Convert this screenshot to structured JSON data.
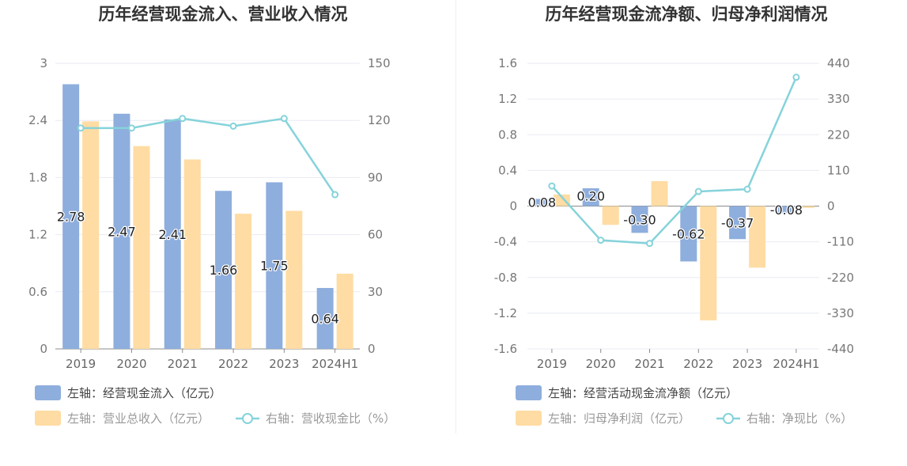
{
  "colors": {
    "bar1": "#8eaedd",
    "bar2": "#ffdca3",
    "line": "#86d3da",
    "grid": "#e8ebf3",
    "zero_axis": "#8c8c8c"
  },
  "chart_data": [
    {
      "type": "bar",
      "title": "历年经营现金流入、营业收入情况",
      "categories": [
        "2019",
        "2020",
        "2021",
        "2022",
        "2023",
        "2024H1"
      ],
      "y_left": {
        "ticks": [
          "0",
          "0.6",
          "1.2",
          "1.8",
          "2.4",
          "3"
        ],
        "ylim": [
          0,
          3
        ]
      },
      "y_right": {
        "ticks": [
          "0",
          "30",
          "60",
          "90",
          "120",
          "150"
        ],
        "ylim": [
          0,
          150
        ]
      },
      "series": [
        {
          "name": "左轴：经营现金流入（亿元）",
          "type": "bar",
          "axis": "left",
          "values": [
            2.78,
            2.47,
            2.41,
            1.66,
            1.75,
            0.64
          ],
          "labels": [
            "2.78",
            "2.47",
            "2.41",
            "1.66",
            "1.75",
            "0.64"
          ]
        },
        {
          "name": "左轴：营业总收入（亿元）",
          "type": "bar",
          "axis": "left",
          "values": [
            2.39,
            2.13,
            1.99,
            1.42,
            1.45,
            0.79
          ]
        },
        {
          "name": "右轴：营收现金比（%）",
          "type": "line",
          "axis": "right",
          "values": [
            116,
            116,
            121,
            117,
            121,
            81
          ]
        }
      ],
      "grid": true,
      "legend_position": "bottom-left"
    },
    {
      "type": "bar",
      "title": "历年经营现金流净额、归母净利润情况",
      "categories": [
        "2019",
        "2020",
        "2021",
        "2022",
        "2023",
        "2024H1"
      ],
      "y_left": {
        "ticks": [
          "-1.6",
          "-1.2",
          "-0.8",
          "-0.4",
          "0",
          "0.4",
          "0.8",
          "1.2",
          "1.6"
        ],
        "ylim": [
          -1.6,
          1.6
        ]
      },
      "y_right": {
        "ticks": [
          "-440",
          "-330",
          "-220",
          "-110",
          "0",
          "110",
          "220",
          "330",
          "440"
        ],
        "ylim": [
          -440,
          440
        ]
      },
      "series": [
        {
          "name": "左轴：经营活动现金流净额（亿元）",
          "type": "bar",
          "axis": "left",
          "values": [
            0.08,
            0.2,
            -0.3,
            -0.62,
            -0.37,
            -0.08
          ],
          "labels": [
            "0.08",
            "0.20",
            "-0.30",
            "-0.62",
            "-0.37",
            "-0.08"
          ]
        },
        {
          "name": "左轴：归母净利润（亿元）",
          "type": "bar",
          "axis": "left",
          "values": [
            0.13,
            -0.21,
            0.28,
            -1.28,
            -0.69,
            -0.02
          ]
        },
        {
          "name": "右轴：净现比（%）",
          "type": "line",
          "axis": "right",
          "values": [
            62,
            -105,
            -115,
            45,
            52,
            397
          ]
        }
      ],
      "grid": true,
      "legend_position": "bottom-left"
    }
  ]
}
